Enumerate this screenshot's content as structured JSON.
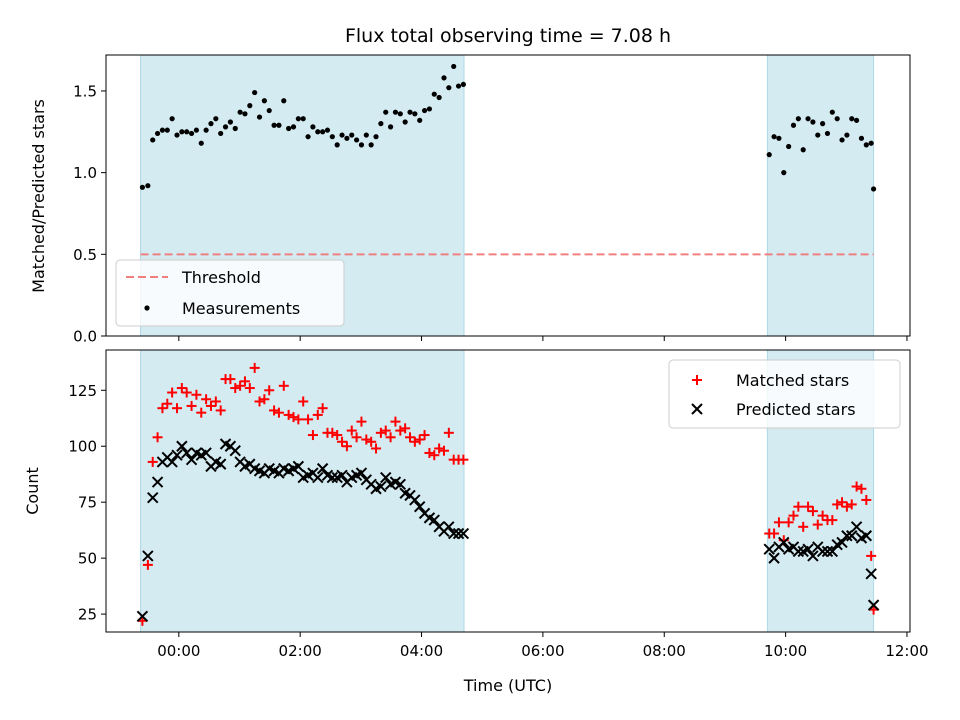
{
  "figure": {
    "title": "Flux total observing time = 7.08 h",
    "xlabel": "Time (UTC)",
    "x_ticks": [
      "00:00",
      "02:00",
      "04:00",
      "06:00",
      "08:00",
      "10:00",
      "12:00"
    ],
    "x_tick_hours": [
      0,
      2,
      4,
      6,
      8,
      10,
      12
    ],
    "xlim_hours": [
      -1.2,
      12.05
    ],
    "shade_color": "#add8e6",
    "shaded_intervals_hours": [
      [
        -0.63,
        4.7
      ],
      [
        9.7,
        11.45
      ]
    ]
  },
  "chart_data": [
    {
      "type": "scatter",
      "ylabel": "Matched/Predicted stars",
      "ylim": [
        0,
        1.72
      ],
      "y_ticks": [
        "0.0",
        "0.5",
        "1.0",
        "1.5"
      ],
      "y_tick_values": [
        0,
        0.5,
        1.0,
        1.5
      ],
      "legend_position": "lower-left",
      "threshold": {
        "name": "Threshold",
        "value": 0.5,
        "x_range": [
          -0.63,
          11.45
        ],
        "color": "#f08080"
      },
      "series": [
        {
          "name": "Measurements",
          "color": "#000000",
          "x": [
            -0.6,
            -0.51,
            -0.43,
            -0.35,
            -0.27,
            -0.19,
            -0.11,
            -0.03,
            0.05,
            0.13,
            0.21,
            0.29,
            0.37,
            0.45,
            0.53,
            0.61,
            0.69,
            0.77,
            0.85,
            0.93,
            1.01,
            1.09,
            1.17,
            1.25,
            1.33,
            1.41,
            1.49,
            1.57,
            1.65,
            1.73,
            1.81,
            1.89,
            1.97,
            2.05,
            2.13,
            2.21,
            2.29,
            2.37,
            2.45,
            2.53,
            2.61,
            2.69,
            2.77,
            2.85,
            2.93,
            3.01,
            3.09,
            3.17,
            3.25,
            3.33,
            3.41,
            3.49,
            3.57,
            3.65,
            3.73,
            3.81,
            3.89,
            3.97,
            4.05,
            4.13,
            4.21,
            4.29,
            4.37,
            4.45,
            4.53,
            4.61,
            4.69,
            9.73,
            9.81,
            9.89,
            9.97,
            10.05,
            10.13,
            10.21,
            10.29,
            10.37,
            10.45,
            10.53,
            10.61,
            10.69,
            10.77,
            10.85,
            10.93,
            11.01,
            11.09,
            11.17,
            11.25,
            11.33,
            11.41,
            11.45
          ],
          "y": [
            0.91,
            0.92,
            1.2,
            1.24,
            1.26,
            1.26,
            1.33,
            1.23,
            1.25,
            1.25,
            1.24,
            1.26,
            1.18,
            1.26,
            1.3,
            1.33,
            1.24,
            1.28,
            1.31,
            1.27,
            1.37,
            1.36,
            1.41,
            1.49,
            1.34,
            1.44,
            1.38,
            1.29,
            1.29,
            1.44,
            1.27,
            1.28,
            1.33,
            1.33,
            1.22,
            1.28,
            1.25,
            1.25,
            1.26,
            1.22,
            1.17,
            1.23,
            1.21,
            1.23,
            1.2,
            1.17,
            1.23,
            1.17,
            1.22,
            1.3,
            1.37,
            1.28,
            1.37,
            1.36,
            1.31,
            1.37,
            1.36,
            1.32,
            1.38,
            1.39,
            1.48,
            1.46,
            1.58,
            1.52,
            1.65,
            1.53,
            1.54,
            1.11,
            1.22,
            1.21,
            1.0,
            1.16,
            1.29,
            1.33,
            1.14,
            1.33,
            1.31,
            1.23,
            1.3,
            1.24,
            1.37,
            1.33,
            1.2,
            1.23,
            1.33,
            1.32,
            1.21,
            1.17,
            1.18,
            0.9
          ]
        }
      ]
    },
    {
      "type": "scatter",
      "ylabel": "Count",
      "ylim": [
        17,
        143
      ],
      "y_ticks": [
        "25",
        "50",
        "75",
        "100",
        "125"
      ],
      "y_tick_values": [
        25,
        50,
        75,
        100,
        125
      ],
      "legend_position": "top-right",
      "series": [
        {
          "name": "Matched stars",
          "color": "#ff0000",
          "marker": "plus",
          "x": [
            -0.6,
            -0.51,
            -0.43,
            -0.35,
            -0.27,
            -0.19,
            -0.11,
            -0.03,
            0.05,
            0.13,
            0.21,
            0.29,
            0.37,
            0.45,
            0.53,
            0.61,
            0.69,
            0.77,
            0.85,
            0.93,
            1.01,
            1.09,
            1.17,
            1.25,
            1.33,
            1.41,
            1.49,
            1.57,
            1.65,
            1.73,
            1.81,
            1.89,
            1.97,
            2.05,
            2.13,
            2.21,
            2.29,
            2.37,
            2.45,
            2.53,
            2.61,
            2.69,
            2.77,
            2.85,
            2.93,
            3.01,
            3.09,
            3.17,
            3.25,
            3.33,
            3.41,
            3.49,
            3.57,
            3.65,
            3.73,
            3.81,
            3.89,
            3.97,
            4.05,
            4.13,
            4.21,
            4.29,
            4.37,
            4.45,
            4.53,
            4.61,
            4.69,
            9.73,
            9.81,
            9.89,
            9.97,
            10.05,
            10.13,
            10.21,
            10.29,
            10.37,
            10.45,
            10.53,
            10.61,
            10.69,
            10.77,
            10.85,
            10.93,
            11.01,
            11.09,
            11.17,
            11.25,
            11.33,
            11.41,
            11.45
          ],
          "y": [
            22,
            47,
            93,
            104,
            117,
            119,
            124,
            117,
            126,
            124,
            118,
            123,
            115,
            121,
            118,
            120,
            116,
            130,
            130,
            126,
            127,
            129,
            126,
            135,
            120,
            121,
            125,
            116,
            115,
            127,
            114,
            113,
            112,
            120,
            112,
            105,
            114,
            117,
            106,
            106,
            105,
            102,
            100,
            107,
            104,
            111,
            103,
            102,
            99,
            106,
            107,
            104,
            111,
            107,
            108,
            104,
            102,
            103,
            105,
            97,
            96,
            99,
            98,
            106,
            94,
            94,
            94,
            61,
            61,
            66,
            58,
            66,
            69,
            73,
            64,
            73,
            71,
            65,
            69,
            67,
            67,
            74,
            75,
            73,
            74,
            82,
            81,
            76,
            51,
            27
          ]
        },
        {
          "name": "Predicted stars",
          "color": "#000000",
          "marker": "x",
          "x": [
            -0.6,
            -0.51,
            -0.43,
            -0.35,
            -0.27,
            -0.19,
            -0.11,
            -0.03,
            0.05,
            0.13,
            0.21,
            0.29,
            0.37,
            0.45,
            0.53,
            0.61,
            0.69,
            0.77,
            0.85,
            0.93,
            1.01,
            1.09,
            1.17,
            1.25,
            1.33,
            1.41,
            1.49,
            1.57,
            1.65,
            1.73,
            1.81,
            1.89,
            1.97,
            2.05,
            2.13,
            2.21,
            2.29,
            2.37,
            2.45,
            2.53,
            2.61,
            2.69,
            2.77,
            2.85,
            2.93,
            3.01,
            3.09,
            3.17,
            3.25,
            3.33,
            3.41,
            3.49,
            3.57,
            3.65,
            3.73,
            3.81,
            3.89,
            3.97,
            4.05,
            4.13,
            4.21,
            4.29,
            4.37,
            4.45,
            4.53,
            4.61,
            4.69,
            9.73,
            9.81,
            9.89,
            9.97,
            10.05,
            10.13,
            10.21,
            10.29,
            10.37,
            10.45,
            10.53,
            10.61,
            10.69,
            10.77,
            10.85,
            10.93,
            11.01,
            11.09,
            11.17,
            11.25,
            11.33,
            11.41,
            11.45
          ],
          "y": [
            24,
            51,
            77,
            84,
            93,
            95,
            93,
            96,
            100,
            97,
            94,
            97,
            96,
            97,
            91,
            93,
            92,
            101,
            100,
            98,
            93,
            91,
            92,
            90,
            89,
            88,
            90,
            89,
            88,
            90,
            89,
            90,
            91,
            86,
            87,
            88,
            86,
            90,
            87,
            86,
            86,
            87,
            84,
            86,
            87,
            88,
            85,
            83,
            81,
            82,
            86,
            83,
            84,
            83,
            79,
            78,
            76,
            73,
            70,
            68,
            67,
            64,
            62,
            64,
            61,
            61,
            61,
            54,
            50,
            55,
            57,
            54,
            55,
            53,
            53,
            54,
            51,
            55,
            53,
            53,
            53,
            56,
            57,
            60,
            60,
            64,
            59,
            60,
            43,
            29
          ]
        }
      ]
    }
  ]
}
